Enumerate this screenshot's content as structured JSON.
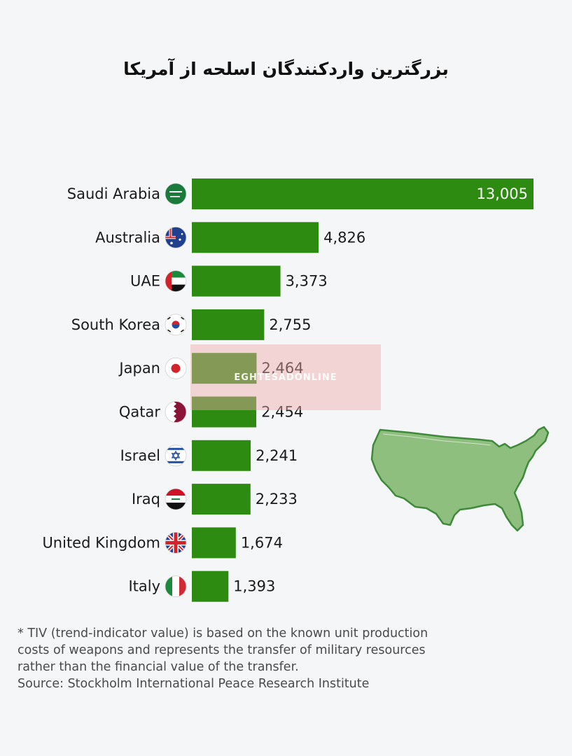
{
  "chart_data": {
    "type": "bar",
    "orientation": "horizontal",
    "title": "بزرگترین واردکنندگان اسلحه از آمریکا",
    "categories": [
      "Saudi Arabia",
      "Australia",
      "UAE",
      "South Korea",
      "Japan",
      "Qatar",
      "Israel",
      "Iraq",
      "United Kingdom",
      "Italy"
    ],
    "values": [
      13005,
      4826,
      3373,
      2755,
      2464,
      2454,
      2241,
      2233,
      1674,
      1393
    ],
    "value_labels": [
      "13,005",
      "4,826",
      "3,373",
      "2,755",
      "2,464",
      "2,454",
      "2,241",
      "2,233",
      "1,674",
      "1,393"
    ],
    "flag_icons": [
      "saudi-arabia-flag-icon",
      "australia-flag-icon",
      "uae-flag-icon",
      "south-korea-flag-icon",
      "japan-flag-icon",
      "qatar-flag-icon",
      "israel-flag-icon",
      "iraq-flag-icon",
      "united-kingdom-flag-icon",
      "italy-flag-icon"
    ],
    "bar_color": "#2e8b12",
    "xlim": [
      0,
      13005
    ],
    "grid": false,
    "legend": "none"
  },
  "watermark": {
    "text": "EGHTESADONLINE"
  },
  "footnote": {
    "lines": [
      "* TIV (trend-indicator value) is based on the known unit production",
      "costs of weapons and represents the transfer of military resources",
      "rather than the financial value of the transfer."
    ],
    "source": "Source: Stockholm International Peace Research Institute"
  },
  "colors": {
    "background": "#f5f6f8",
    "bar": "#2e8b12",
    "map_fill": "#8fbf7f",
    "map_stroke": "#3f8a3a"
  }
}
